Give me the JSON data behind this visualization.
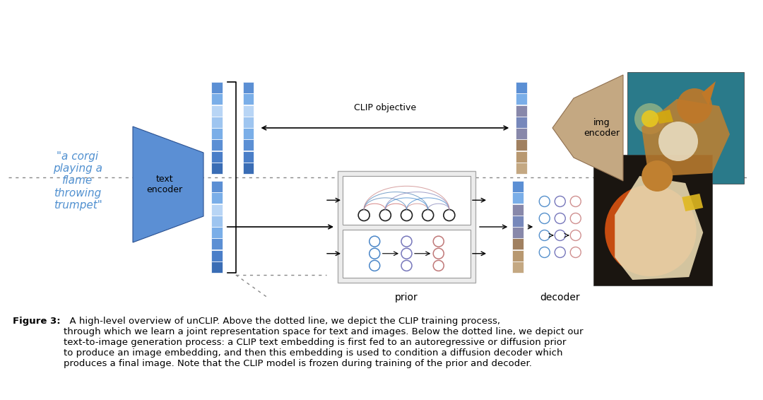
{
  "bg_color": "#ffffff",
  "caption_bold": "Figure 3:",
  "caption_rest": "  A high-level overview of unCLIP. Above the dotted line, we depict the CLIP training process,\nthrough which we learn a joint representation space for text and images. Below the dotted line, we depict our\ntext-to-image generation process: a CLIP text embedding is first fed to an autoregressive or diffusion prior\nto produce an image embedding, and then this embedding is used to condition a diffusion decoder which\nproduces a final image. Note that the CLIP model is frozen during training of the prior and decoder.",
  "text_input": "\"a corgi\nplaying a\nflame\nthrowing\ntrumpet\"",
  "text_encoder_label": "text\nencoder",
  "img_encoder_label": "img\nencoder",
  "prior_label": "prior",
  "decoder_label": "decoder",
  "clip_objective_label": "CLIP objective",
  "blue_dark": "#3a6db5",
  "blue_mid": "#5b8fd4",
  "blue_light": "#7aaee8",
  "blue_pale": "#9ec5f0",
  "emb_blue_colors": [
    "#3a6db5",
    "#4a7ec8",
    "#5b8fd4",
    "#7aaee8",
    "#9ec5f0",
    "#b8d5f5",
    "#7aaee8",
    "#5b8fd4"
  ],
  "emb_tan_colors": [
    "#c4a882",
    "#b89870",
    "#a88c60",
    "#b89870",
    "#c4a882",
    "#d4b898",
    "#a08060",
    "#b89870"
  ],
  "emb_mixed_colors": [
    "#c4a882",
    "#b89870",
    "#a08060",
    "#8888aa",
    "#7788bb",
    "#8888aa",
    "#7aaee8",
    "#5b8fd4"
  ],
  "tan_color": "#c4a882",
  "tan_dark": "#a08060",
  "text_input_color": "#5090d0",
  "arc_colors_top": [
    "#c07070",
    "#c07878",
    "#8888bb",
    "#5588bb",
    "#4488cc"
  ],
  "arc_colors_bot": [
    "#c07070",
    "#c07878",
    "#8888bb",
    "#5588bb",
    "#4488cc"
  ],
  "diff_circle_colors": [
    "#4a86c8",
    "#7777bb",
    "#c07878"
  ],
  "decoder_circle_cols": [
    "#5590cc",
    "#7777bb",
    "#d09090"
  ],
  "corgi_top_bg": "#2a7a8a",
  "corgi_bot_bg": "#1a1510",
  "corgi_orange": "#d05010"
}
